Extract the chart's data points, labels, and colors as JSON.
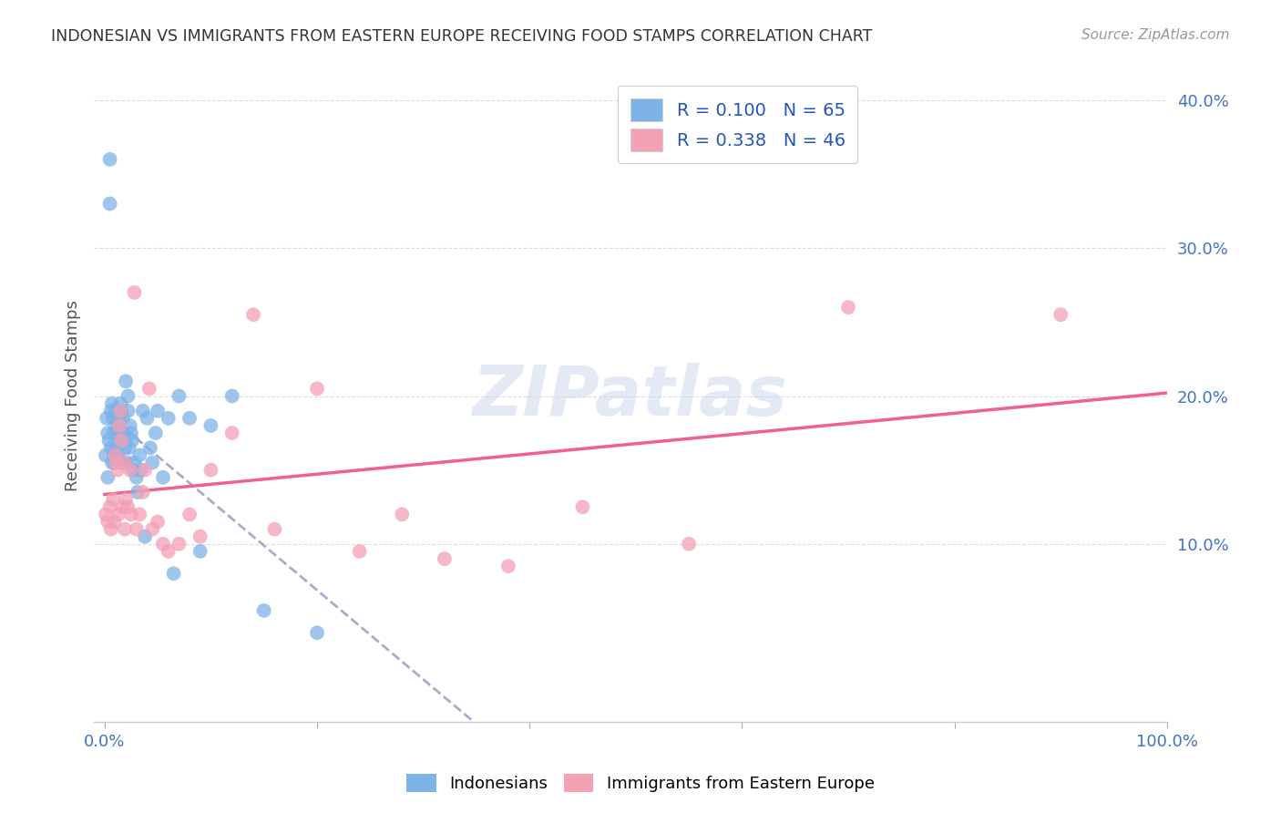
{
  "title": "INDONESIAN VS IMMIGRANTS FROM EASTERN EUROPE RECEIVING FOOD STAMPS CORRELATION CHART",
  "source": "Source: ZipAtlas.com",
  "ylabel": "Receiving Food Stamps",
  "xlim": [
    -0.01,
    1.0
  ],
  "ylim": [
    -0.02,
    0.42
  ],
  "R_indonesian": 0.1,
  "N_indonesian": 65,
  "R_eastern": 0.338,
  "N_eastern": 46,
  "color_indonesian": "#7eb3e8",
  "color_eastern": "#f4a0b5",
  "color_line_indonesian_dash": "#aaaacc",
  "color_line_eastern": "#f06090",
  "watermark": "ZIPatlas",
  "indonesian_x": [
    0.001,
    0.002,
    0.003,
    0.003,
    0.004,
    0.005,
    0.005,
    0.006,
    0.006,
    0.007,
    0.007,
    0.008,
    0.008,
    0.009,
    0.009,
    0.01,
    0.01,
    0.011,
    0.011,
    0.012,
    0.012,
    0.013,
    0.013,
    0.014,
    0.014,
    0.015,
    0.015,
    0.016,
    0.016,
    0.017,
    0.017,
    0.018,
    0.019,
    0.02,
    0.02,
    0.021,
    0.022,
    0.022,
    0.023,
    0.024,
    0.025,
    0.026,
    0.027,
    0.028,
    0.03,
    0.031,
    0.033,
    0.034,
    0.036,
    0.038,
    0.04,
    0.043,
    0.045,
    0.048,
    0.05,
    0.055,
    0.06,
    0.065,
    0.07,
    0.08,
    0.09,
    0.1,
    0.12,
    0.15,
    0.2
  ],
  "indonesian_y": [
    0.16,
    0.185,
    0.145,
    0.175,
    0.17,
    0.36,
    0.33,
    0.19,
    0.165,
    0.155,
    0.195,
    0.175,
    0.185,
    0.16,
    0.155,
    0.19,
    0.18,
    0.17,
    0.165,
    0.185,
    0.175,
    0.175,
    0.16,
    0.185,
    0.175,
    0.195,
    0.155,
    0.19,
    0.175,
    0.185,
    0.155,
    0.175,
    0.165,
    0.21,
    0.17,
    0.155,
    0.2,
    0.19,
    0.165,
    0.18,
    0.175,
    0.17,
    0.15,
    0.155,
    0.145,
    0.135,
    0.16,
    0.15,
    0.19,
    0.105,
    0.185,
    0.165,
    0.155,
    0.175,
    0.19,
    0.145,
    0.185,
    0.08,
    0.2,
    0.185,
    0.095,
    0.18,
    0.2,
    0.055,
    0.04
  ],
  "eastern_x": [
    0.001,
    0.003,
    0.005,
    0.006,
    0.008,
    0.009,
    0.01,
    0.011,
    0.012,
    0.013,
    0.014,
    0.015,
    0.016,
    0.017,
    0.018,
    0.019,
    0.02,
    0.022,
    0.024,
    0.025,
    0.028,
    0.03,
    0.033,
    0.036,
    0.038,
    0.042,
    0.045,
    0.05,
    0.055,
    0.06,
    0.07,
    0.08,
    0.09,
    0.1,
    0.12,
    0.14,
    0.16,
    0.2,
    0.24,
    0.28,
    0.32,
    0.38,
    0.45,
    0.55,
    0.7,
    0.9
  ],
  "eastern_y": [
    0.12,
    0.115,
    0.125,
    0.11,
    0.13,
    0.115,
    0.16,
    0.155,
    0.15,
    0.12,
    0.18,
    0.19,
    0.17,
    0.125,
    0.155,
    0.11,
    0.13,
    0.125,
    0.15,
    0.12,
    0.27,
    0.11,
    0.12,
    0.135,
    0.15,
    0.205,
    0.11,
    0.115,
    0.1,
    0.095,
    0.1,
    0.12,
    0.105,
    0.15,
    0.175,
    0.255,
    0.11,
    0.205,
    0.095,
    0.12,
    0.09,
    0.085,
    0.125,
    0.1,
    0.26,
    0.255
  ],
  "background_color": "#ffffff",
  "grid_color": "#dddddd",
  "tick_color": "#4472c4",
  "title_color": "#333333",
  "source_color": "#999999",
  "ylabel_color": "#555555"
}
